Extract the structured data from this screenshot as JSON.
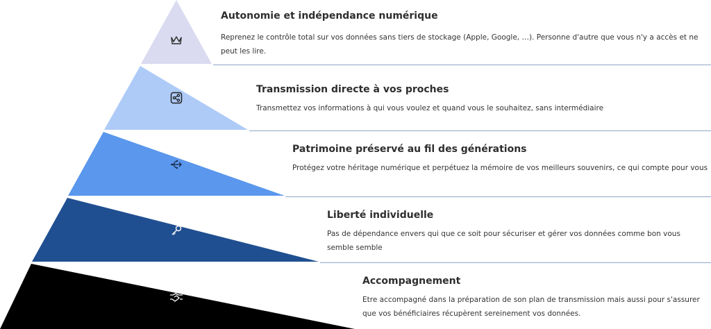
{
  "colors": {
    "tier1": "#dadbf0",
    "tier2": "#aecbf7",
    "tier3": "#5a97ed",
    "tier4": "#204f91",
    "tier5": "#000000"
  },
  "tiers": [
    {
      "icon": "crown-icon",
      "title": "Autonomie et indépendance numérique",
      "description": "Reprenez le contrôle total sur vos données sans tiers de stockage (Apple, Google, …). Personne d'autre que vous n'y a accès et ne peut les lire."
    },
    {
      "icon": "share-nodes-icon",
      "title": "Transmission directe à vos proches",
      "description": "Transmettez vos informations à qui vous voulez et quand vous le souhaitez, sans intermédiaire"
    },
    {
      "icon": "branch-arrow-icon",
      "title": "Patrimoine préservé au fil des générations",
      "description": "Protégez votre héritage numérique et perpétuez la mémoire de vos meilleurs souvenirs, ce qui compte pour vous"
    },
    {
      "icon": "key-icon",
      "title": "Liberté individuelle",
      "description": "Pas de dépendance envers qui que ce soit pour sécuriser et gérer vos données comme bon vous semble semble"
    },
    {
      "icon": "handshake-icon",
      "title": "Accompagnement",
      "description": "Etre accompagné dans la préparation de son plan de transmission mais aussi pour s'assurer que vos bénéficiaires récupèrent sereinement vos données."
    }
  ]
}
